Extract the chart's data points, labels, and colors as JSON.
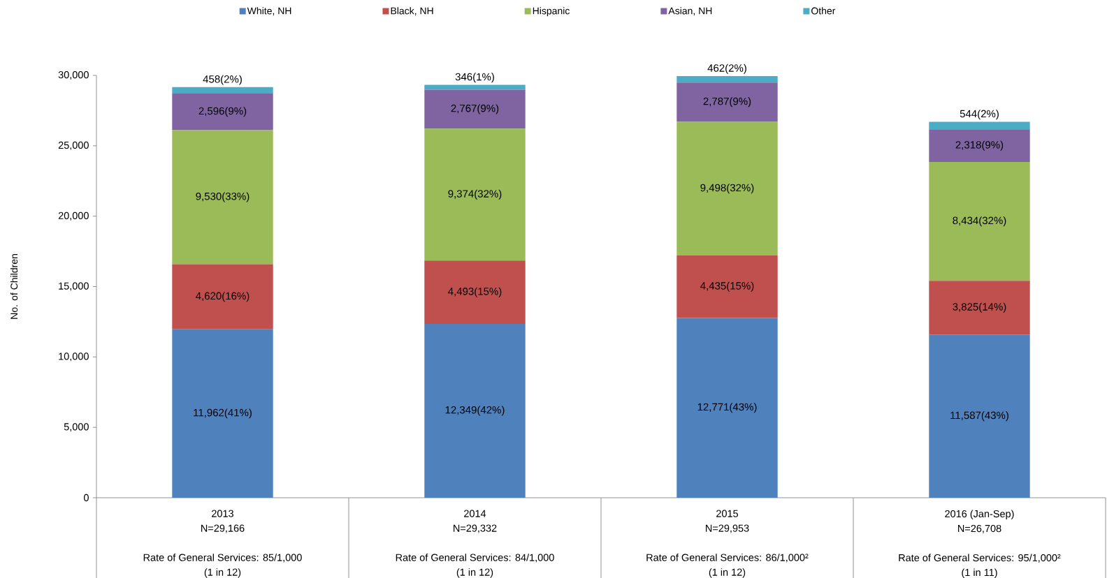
{
  "chart_data": {
    "type": "bar",
    "stacked": true,
    "ylabel": "No. of Children",
    "categories": [
      "2013\nN=29,166\n\nRate of General Services: 85/1,000\n(1 in 12)",
      "2014\nN=29,332\n\nRate of General Services: 84/1,000\n(1 in 12)",
      "2015\nN=29,953\n\nRate of General Services: 86/1,000²\n(1 in 12)",
      "2016 (Jan-Sep)\nN=26,708\n\nRate of General Services: 95/1,000²\n(1 in 11)"
    ],
    "series": [
      {
        "name": "White, NH",
        "color": "#4f81bd",
        "values": [
          11962,
          12349,
          12771,
          11587
        ],
        "value_labels": [
          "11,962(41%)",
          "12,349(42%)",
          "12,771(43%)",
          "11,587(43%)"
        ]
      },
      {
        "name": "Black, NH",
        "color": "#c0504d",
        "values": [
          4620,
          4493,
          4435,
          3825
        ],
        "value_labels": [
          "4,620(16%)",
          "4,493(15%)",
          "4,435(15%)",
          "3,825(14%)"
        ]
      },
      {
        "name": "Hispanic",
        "color": "#9bbb59",
        "values": [
          9530,
          9374,
          9498,
          8434
        ],
        "value_labels": [
          "9,530(33%)",
          "9,374(32%)",
          "9,498(32%)",
          "8,434(32%)"
        ]
      },
      {
        "name": "Asian, NH",
        "color": "#8064a2",
        "values": [
          2596,
          2767,
          2787,
          2318
        ],
        "value_labels": [
          "2,596(9%)",
          "2,767(9%)",
          "2,787(9%)",
          "2,318(9%)"
        ]
      },
      {
        "name": "Other",
        "color": "#4bacc6",
        "values": [
          458,
          346,
          462,
          544
        ],
        "value_labels": [
          "458(2%)",
          "346(1%)",
          "462(2%)",
          "544(2%)"
        ]
      }
    ],
    "ylim": [
      0,
      30000
    ],
    "yticks": [
      0,
      {
        "value": 5000,
        "label": "5,000"
      },
      {
        "value": 10000,
        "label": "10,000"
      },
      {
        "value": 15000,
        "label": "15,000"
      },
      {
        "value": 20000,
        "label": "20,000"
      },
      {
        "value": 25000,
        "label": "25,000"
      },
      {
        "value": 30000,
        "label": "30,000"
      }
    ],
    "legend": "top"
  }
}
